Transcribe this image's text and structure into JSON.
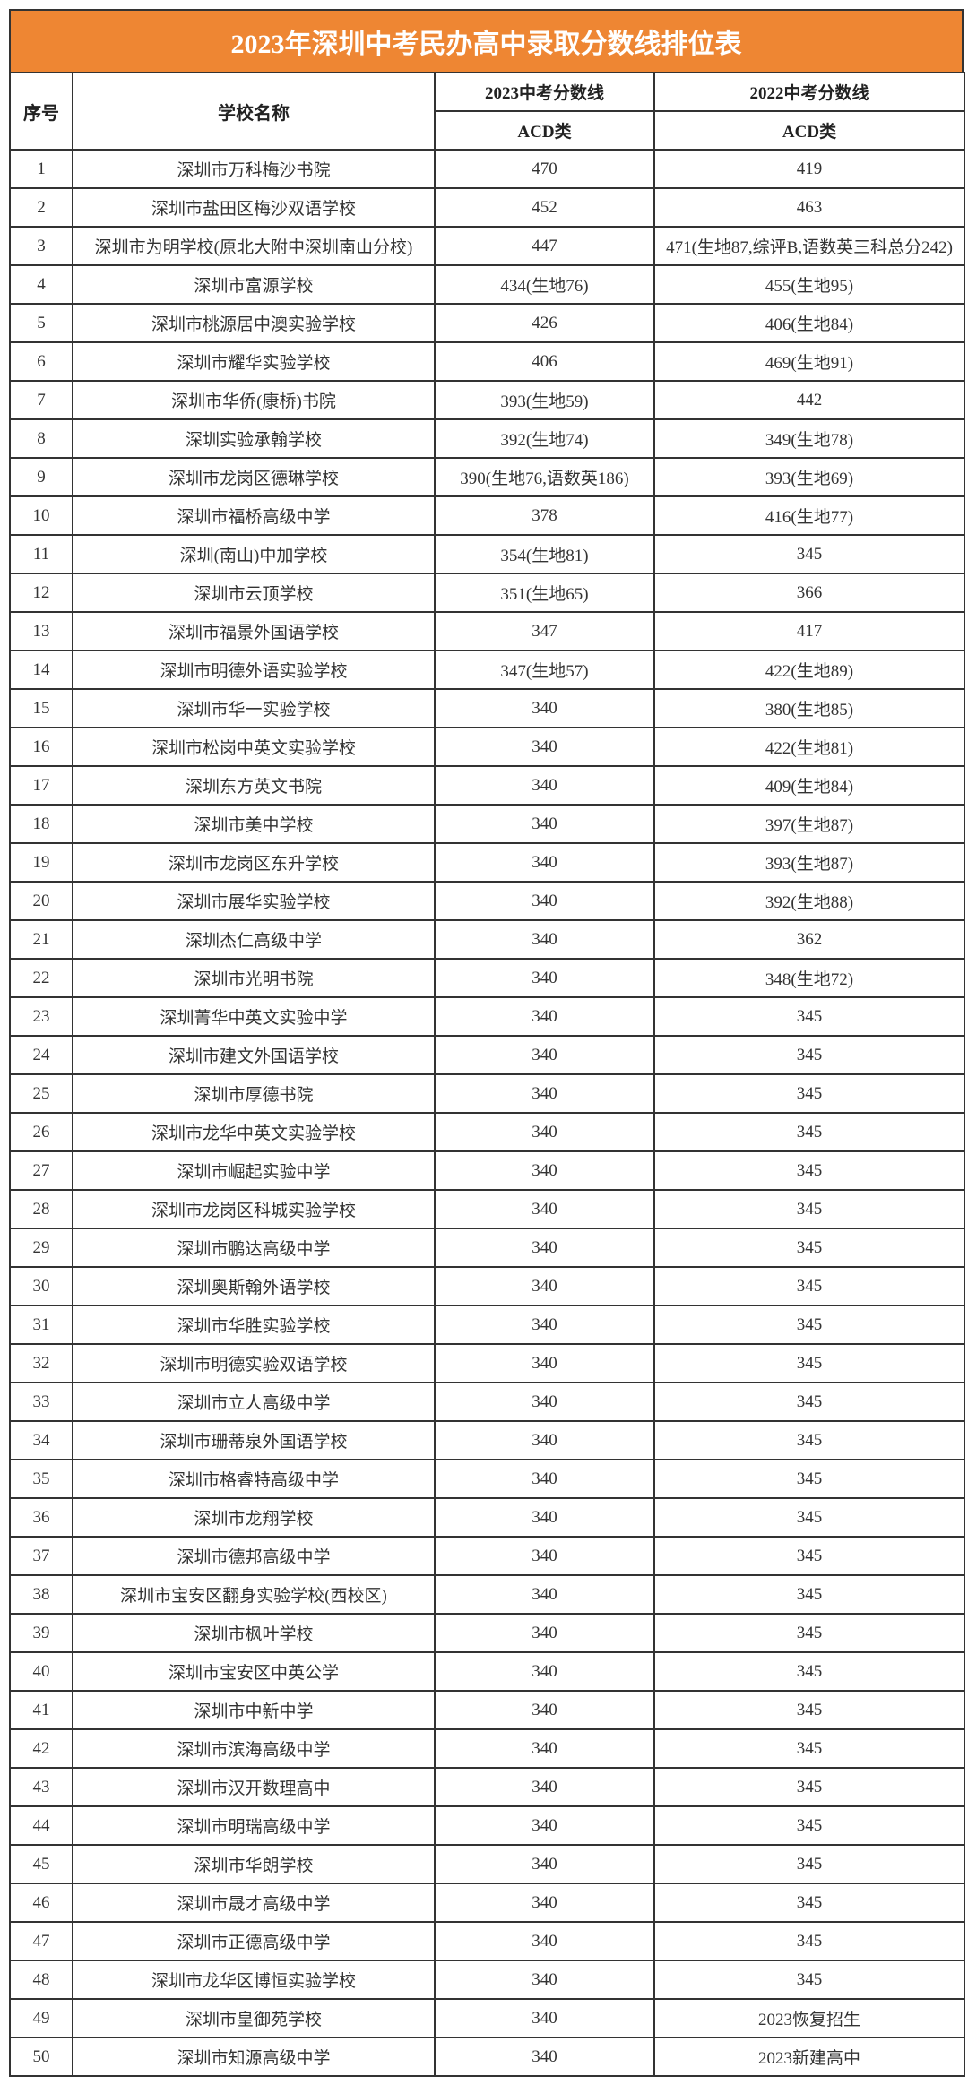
{
  "title": "2023年深圳中考民办高中录取分数线排位表",
  "headers": {
    "index": "序号",
    "name": "学校名称",
    "y2023": "2023中考分数线",
    "y2022": "2022中考分数线",
    "sub2023": "ACD类",
    "sub2022": "ACD类"
  },
  "rows": [
    [
      "1",
      "深圳市万科梅沙书院",
      "470",
      "419"
    ],
    [
      "2",
      "深圳市盐田区梅沙双语学校",
      "452",
      "463"
    ],
    [
      "3",
      "深圳市为明学校(原北大附中深圳南山分校)",
      "447",
      "471(生地87,综评B,语数英三科总分242)"
    ],
    [
      "4",
      "深圳市富源学校",
      "434(生地76)",
      "455(生地95)"
    ],
    [
      "5",
      "深圳市桃源居中澳实验学校",
      "426",
      "406(生地84)"
    ],
    [
      "6",
      "深圳市耀华实验学校",
      "406",
      "469(生地91)"
    ],
    [
      "7",
      "深圳市华侨(康桥)书院",
      "393(生地59)",
      "442"
    ],
    [
      "8",
      "深圳实验承翰学校",
      "392(生地74)",
      "349(生地78)"
    ],
    [
      "9",
      "深圳市龙岗区德琳学校",
      "390(生地76,语数英186)",
      "393(生地69)"
    ],
    [
      "10",
      "深圳市福桥高级中学",
      "378",
      "416(生地77)"
    ],
    [
      "11",
      "深圳(南山)中加学校",
      "354(生地81)",
      "345"
    ],
    [
      "12",
      "深圳市云顶学校",
      "351(生地65)",
      "366"
    ],
    [
      "13",
      "深圳市福景外国语学校",
      "347",
      "417"
    ],
    [
      "14",
      "深圳市明德外语实验学校",
      "347(生地57)",
      "422(生地89)"
    ],
    [
      "15",
      "深圳市华一实验学校",
      "340",
      "380(生地85)"
    ],
    [
      "16",
      "深圳市松岗中英文实验学校",
      "340",
      "422(生地81)"
    ],
    [
      "17",
      "深圳东方英文书院",
      "340",
      "409(生地84)"
    ],
    [
      "18",
      "深圳市美中学校",
      "340",
      "397(生地87)"
    ],
    [
      "19",
      "深圳市龙岗区东升学校",
      "340",
      "393(生地87)"
    ],
    [
      "20",
      "深圳市展华实验学校",
      "340",
      "392(生地88)"
    ],
    [
      "21",
      "深圳杰仁高级中学",
      "340",
      "362"
    ],
    [
      "22",
      "深圳市光明书院",
      "340",
      "348(生地72)"
    ],
    [
      "23",
      "深圳菁华中英文实验中学",
      "340",
      "345"
    ],
    [
      "24",
      "深圳市建文外国语学校",
      "340",
      "345"
    ],
    [
      "25",
      "深圳市厚德书院",
      "340",
      "345"
    ],
    [
      "26",
      "深圳市龙华中英文实验学校",
      "340",
      "345"
    ],
    [
      "27",
      "深圳市崛起实验中学",
      "340",
      "345"
    ],
    [
      "28",
      "深圳市龙岗区科城实验学校",
      "340",
      "345"
    ],
    [
      "29",
      "深圳市鹏达高级中学",
      "340",
      "345"
    ],
    [
      "30",
      "深圳奥斯翰外语学校",
      "340",
      "345"
    ],
    [
      "31",
      "深圳市华胜实验学校",
      "340",
      "345"
    ],
    [
      "32",
      "深圳市明德实验双语学校",
      "340",
      "345"
    ],
    [
      "33",
      "深圳市立人高级中学",
      "340",
      "345"
    ],
    [
      "34",
      "深圳市珊蒂泉外国语学校",
      "340",
      "345"
    ],
    [
      "35",
      "深圳市格睿特高级中学",
      "340",
      "345"
    ],
    [
      "36",
      "深圳市龙翔学校",
      "340",
      "345"
    ],
    [
      "37",
      "深圳市德邦高级中学",
      "340",
      "345"
    ],
    [
      "38",
      "深圳市宝安区翻身实验学校(西校区)",
      "340",
      "345"
    ],
    [
      "39",
      "深圳市枫叶学校",
      "340",
      "345"
    ],
    [
      "40",
      "深圳市宝安区中英公学",
      "340",
      "345"
    ],
    [
      "41",
      "深圳市中新中学",
      "340",
      "345"
    ],
    [
      "42",
      "深圳市滨海高级中学",
      "340",
      "345"
    ],
    [
      "43",
      "深圳市汉开数理高中",
      "340",
      "345"
    ],
    [
      "44",
      "深圳市明瑞高级中学",
      "340",
      "345"
    ],
    [
      "45",
      "深圳市华朗学校",
      "340",
      "345"
    ],
    [
      "46",
      "深圳市晟才高级中学",
      "340",
      "345"
    ],
    [
      "47",
      "深圳市正德高级中学",
      "340",
      "345"
    ],
    [
      "48",
      "深圳市龙华区博恒实验学校",
      "340",
      "345"
    ],
    [
      "49",
      "深圳市皇御苑学校",
      "340",
      "2023恢复招生"
    ],
    [
      "50",
      "深圳市知源高级中学",
      "340",
      "2023新建高中"
    ]
  ],
  "colors": {
    "title_bg": "#EE8633",
    "title_text": "#FFFFFF",
    "border": "#333333"
  }
}
